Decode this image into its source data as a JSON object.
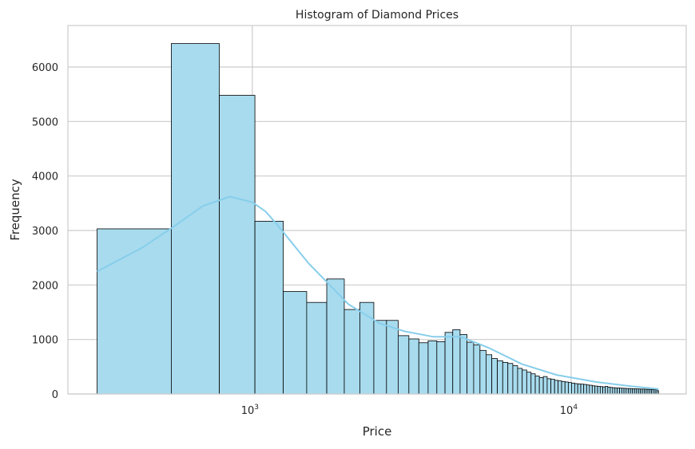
{
  "chart_data": {
    "type": "bar",
    "title": "Histogram of Diamond Prices",
    "xlabel": "Price",
    "ylabel": "Frequency",
    "x_scale": "log",
    "xlim": [
      264,
      22960
    ],
    "ylim": [
      0,
      6761
    ],
    "grid": true,
    "x_ticks": [
      {
        "value": 1000,
        "base": "10",
        "exp": "3"
      },
      {
        "value": 10000,
        "base": "10",
        "exp": "4"
      }
    ],
    "y_ticks": [
      0,
      1000,
      2000,
      3000,
      4000,
      5000,
      6000
    ],
    "bin_start": 326,
    "bin_width": 231,
    "values": [
      3030,
      6430,
      5480,
      3170,
      1880,
      1680,
      2110,
      1550,
      1680,
      1350,
      1350,
      1070,
      1010,
      940,
      975,
      960,
      1130,
      1180,
      1090,
      950,
      900,
      800,
      720,
      650,
      610,
      580,
      560,
      520,
      470,
      440,
      400,
      370,
      330,
      300,
      320,
      280,
      270,
      250,
      240,
      230,
      220,
      210,
      200,
      190,
      185,
      180,
      175,
      165,
      160,
      150,
      145,
      140,
      135,
      130,
      140,
      125,
      120,
      115,
      112,
      110,
      108,
      105,
      103,
      100,
      100,
      98,
      96,
      95,
      93,
      92,
      90,
      90,
      88,
      86,
      85,
      84,
      82,
      80,
      78,
      60
    ],
    "kde": {
      "x": [
        326,
        450,
        560,
        700,
        850,
        1000,
        1100,
        1200,
        1500,
        2000,
        2500,
        3000,
        3700,
        4500,
        5500,
        7000,
        9000,
        12000,
        15000,
        18823
      ],
      "y": [
        2250,
        2680,
        3050,
        3450,
        3620,
        3520,
        3350,
        3100,
        2400,
        1650,
        1300,
        1150,
        1050,
        1050,
        850,
        550,
        350,
        220,
        150,
        90
      ]
    },
    "colors": {
      "bar": "#a8dbee",
      "edge": "#000000",
      "kde": "#87ceeb",
      "grid": "#cccccc"
    }
  }
}
